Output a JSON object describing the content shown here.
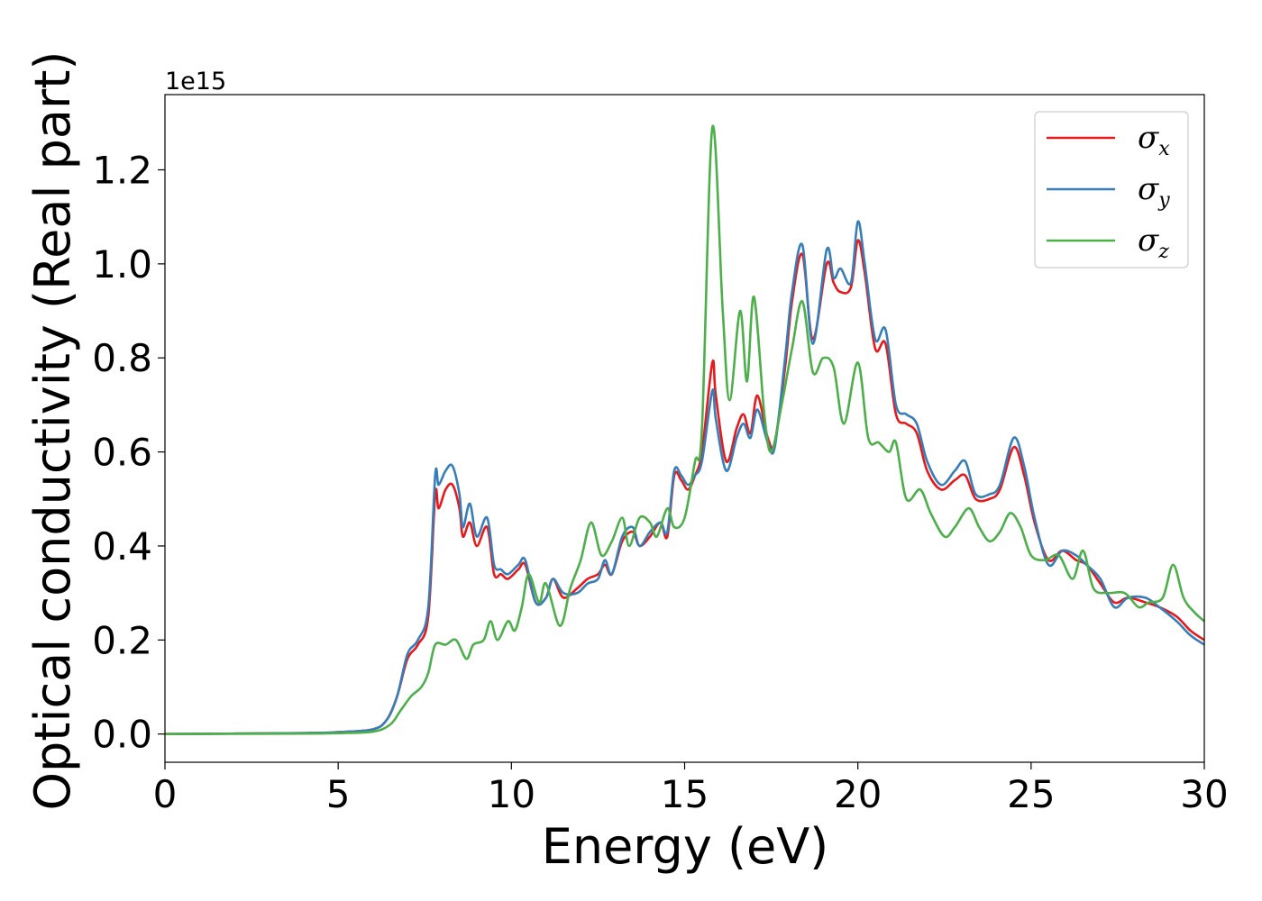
{
  "chart_data": {
    "type": "line",
    "title": "",
    "xlabel": "Energy (eV)",
    "ylabel": "Optical conductivity (Real part)",
    "y_offset_text": "1e15",
    "xlim": [
      0,
      30
    ],
    "ylim": [
      -0.06,
      1.36
    ],
    "x_ticks": [
      0,
      5,
      10,
      15,
      20,
      25,
      30
    ],
    "x_tick_labels": [
      "0",
      "5",
      "10",
      "15",
      "20",
      "25",
      "30"
    ],
    "y_ticks": [
      0.0,
      0.2,
      0.4,
      0.6,
      0.8,
      1.0,
      1.2
    ],
    "y_tick_labels": [
      "0.0",
      "0.2",
      "0.4",
      "0.6",
      "0.8",
      "1.0",
      "1.2"
    ],
    "grid": false,
    "legend_position": "top-right",
    "series": [
      {
        "name": "σx",
        "symbol": "σ",
        "subscript": "x",
        "color": "#e41a1c",
        "points": [
          [
            0,
            0
          ],
          [
            4,
            0.002
          ],
          [
            5,
            0.004
          ],
          [
            6,
            0.01
          ],
          [
            6.4,
            0.03
          ],
          [
            6.7,
            0.08
          ],
          [
            7,
            0.16
          ],
          [
            7.3,
            0.19
          ],
          [
            7.6,
            0.25
          ],
          [
            7.8,
            0.51
          ],
          [
            7.9,
            0.48
          ],
          [
            8.1,
            0.52
          ],
          [
            8.3,
            0.53
          ],
          [
            8.5,
            0.48
          ],
          [
            8.6,
            0.42
          ],
          [
            8.8,
            0.45
          ],
          [
            9,
            0.4
          ],
          [
            9.3,
            0.44
          ],
          [
            9.5,
            0.34
          ],
          [
            9.7,
            0.34
          ],
          [
            9.9,
            0.33
          ],
          [
            10.2,
            0.35
          ],
          [
            10.4,
            0.36
          ],
          [
            10.7,
            0.28
          ],
          [
            11,
            0.29
          ],
          [
            11.2,
            0.33
          ],
          [
            11.5,
            0.29
          ],
          [
            11.9,
            0.31
          ],
          [
            12.2,
            0.33
          ],
          [
            12.5,
            0.34
          ],
          [
            12.7,
            0.36
          ],
          [
            12.9,
            0.34
          ],
          [
            13.2,
            0.41
          ],
          [
            13.5,
            0.43
          ],
          [
            13.7,
            0.4
          ],
          [
            14,
            0.42
          ],
          [
            14.3,
            0.45
          ],
          [
            14.5,
            0.42
          ],
          [
            14.7,
            0.55
          ],
          [
            14.9,
            0.54
          ],
          [
            15.1,
            0.52
          ],
          [
            15.3,
            0.55
          ],
          [
            15.5,
            0.6
          ],
          [
            15.8,
            0.79
          ],
          [
            15.9,
            0.72
          ],
          [
            16.2,
            0.58
          ],
          [
            16.5,
            0.65
          ],
          [
            16.7,
            0.68
          ],
          [
            16.9,
            0.64
          ],
          [
            17.1,
            0.72
          ],
          [
            17.4,
            0.63
          ],
          [
            17.6,
            0.62
          ],
          [
            17.9,
            0.78
          ],
          [
            18.1,
            0.92
          ],
          [
            18.4,
            1.02
          ],
          [
            18.7,
            0.84
          ],
          [
            19.1,
            1.0
          ],
          [
            19.3,
            0.96
          ],
          [
            19.5,
            0.94
          ],
          [
            19.8,
            0.95
          ],
          [
            20,
            1.05
          ],
          [
            20.2,
            0.98
          ],
          [
            20.5,
            0.82
          ],
          [
            20.8,
            0.83
          ],
          [
            21.1,
            0.68
          ],
          [
            21.4,
            0.66
          ],
          [
            21.7,
            0.64
          ],
          [
            22,
            0.56
          ],
          [
            22.4,
            0.52
          ],
          [
            22.8,
            0.54
          ],
          [
            23.1,
            0.55
          ],
          [
            23.4,
            0.5
          ],
          [
            23.8,
            0.5
          ],
          [
            24.1,
            0.52
          ],
          [
            24.5,
            0.61
          ],
          [
            24.8,
            0.55
          ],
          [
            25.1,
            0.45
          ],
          [
            25.5,
            0.37
          ],
          [
            25.9,
            0.39
          ],
          [
            26.3,
            0.37
          ],
          [
            26.6,
            0.36
          ],
          [
            27,
            0.32
          ],
          [
            27.4,
            0.28
          ],
          [
            27.8,
            0.29
          ],
          [
            28.3,
            0.28
          ],
          [
            28.7,
            0.27
          ],
          [
            29.2,
            0.25
          ],
          [
            29.6,
            0.22
          ],
          [
            30,
            0.2
          ]
        ]
      },
      {
        "name": "σy",
        "symbol": "σ",
        "subscript": "y",
        "color": "#377eb8",
        "points": [
          [
            0,
            0
          ],
          [
            4,
            0.002
          ],
          [
            5,
            0.004
          ],
          [
            6,
            0.01
          ],
          [
            6.4,
            0.03
          ],
          [
            6.7,
            0.08
          ],
          [
            7,
            0.17
          ],
          [
            7.3,
            0.2
          ],
          [
            7.6,
            0.27
          ],
          [
            7.8,
            0.55
          ],
          [
            7.9,
            0.53
          ],
          [
            8.1,
            0.56
          ],
          [
            8.3,
            0.57
          ],
          [
            8.5,
            0.51
          ],
          [
            8.6,
            0.44
          ],
          [
            8.8,
            0.49
          ],
          [
            9,
            0.42
          ],
          [
            9.3,
            0.46
          ],
          [
            9.5,
            0.36
          ],
          [
            9.7,
            0.35
          ],
          [
            9.9,
            0.34
          ],
          [
            10.2,
            0.36
          ],
          [
            10.4,
            0.37
          ],
          [
            10.7,
            0.28
          ],
          [
            11,
            0.29
          ],
          [
            11.2,
            0.33
          ],
          [
            11.5,
            0.3
          ],
          [
            11.9,
            0.3
          ],
          [
            12.2,
            0.32
          ],
          [
            12.5,
            0.33
          ],
          [
            12.7,
            0.37
          ],
          [
            12.9,
            0.34
          ],
          [
            13.2,
            0.42
          ],
          [
            13.5,
            0.44
          ],
          [
            13.7,
            0.4
          ],
          [
            14,
            0.43
          ],
          [
            14.3,
            0.45
          ],
          [
            14.5,
            0.43
          ],
          [
            14.7,
            0.56
          ],
          [
            14.9,
            0.55
          ],
          [
            15.1,
            0.53
          ],
          [
            15.3,
            0.55
          ],
          [
            15.5,
            0.58
          ],
          [
            15.8,
            0.73
          ],
          [
            15.9,
            0.67
          ],
          [
            16.2,
            0.56
          ],
          [
            16.5,
            0.63
          ],
          [
            16.7,
            0.66
          ],
          [
            16.9,
            0.63
          ],
          [
            17.1,
            0.69
          ],
          [
            17.4,
            0.62
          ],
          [
            17.6,
            0.61
          ],
          [
            17.9,
            0.8
          ],
          [
            18.1,
            0.94
          ],
          [
            18.4,
            1.04
          ],
          [
            18.7,
            0.83
          ],
          [
            19.1,
            1.03
          ],
          [
            19.3,
            0.97
          ],
          [
            19.5,
            0.99
          ],
          [
            19.8,
            0.96
          ],
          [
            20,
            1.09
          ],
          [
            20.2,
            1.0
          ],
          [
            20.5,
            0.84
          ],
          [
            20.8,
            0.86
          ],
          [
            21.1,
            0.7
          ],
          [
            21.4,
            0.68
          ],
          [
            21.7,
            0.66
          ],
          [
            22,
            0.58
          ],
          [
            22.4,
            0.53
          ],
          [
            22.8,
            0.56
          ],
          [
            23.1,
            0.58
          ],
          [
            23.4,
            0.51
          ],
          [
            23.8,
            0.51
          ],
          [
            24.1,
            0.53
          ],
          [
            24.5,
            0.63
          ],
          [
            24.8,
            0.57
          ],
          [
            25.1,
            0.46
          ],
          [
            25.5,
            0.36
          ],
          [
            25.9,
            0.39
          ],
          [
            26.3,
            0.38
          ],
          [
            26.6,
            0.36
          ],
          [
            27,
            0.33
          ],
          [
            27.4,
            0.27
          ],
          [
            27.8,
            0.29
          ],
          [
            28.3,
            0.29
          ],
          [
            28.7,
            0.27
          ],
          [
            29.2,
            0.24
          ],
          [
            29.6,
            0.21
          ],
          [
            30,
            0.19
          ]
        ]
      },
      {
        "name": "σz",
        "symbol": "σ",
        "subscript": "z",
        "color": "#4daf4a",
        "points": [
          [
            0,
            0
          ],
          [
            4,
            0.001
          ],
          [
            5,
            0.002
          ],
          [
            6,
            0.005
          ],
          [
            6.5,
            0.02
          ],
          [
            6.8,
            0.05
          ],
          [
            7.1,
            0.08
          ],
          [
            7.4,
            0.1
          ],
          [
            7.6,
            0.13
          ],
          [
            7.8,
            0.19
          ],
          [
            8.1,
            0.19
          ],
          [
            8.4,
            0.2
          ],
          [
            8.7,
            0.16
          ],
          [
            8.9,
            0.19
          ],
          [
            9.2,
            0.2
          ],
          [
            9.4,
            0.24
          ],
          [
            9.6,
            0.2
          ],
          [
            9.9,
            0.24
          ],
          [
            10.1,
            0.22
          ],
          [
            10.3,
            0.27
          ],
          [
            10.5,
            0.34
          ],
          [
            10.8,
            0.28
          ],
          [
            11,
            0.32
          ],
          [
            11.4,
            0.23
          ],
          [
            11.7,
            0.31
          ],
          [
            12,
            0.37
          ],
          [
            12.3,
            0.45
          ],
          [
            12.6,
            0.38
          ],
          [
            12.9,
            0.41
          ],
          [
            13.2,
            0.46
          ],
          [
            13.4,
            0.4
          ],
          [
            13.7,
            0.46
          ],
          [
            14,
            0.45
          ],
          [
            14.2,
            0.42
          ],
          [
            14.5,
            0.48
          ],
          [
            14.7,
            0.44
          ],
          [
            15,
            0.46
          ],
          [
            15.3,
            0.58
          ],
          [
            15.5,
            0.65
          ],
          [
            15.8,
            1.29
          ],
          [
            16.1,
            0.9
          ],
          [
            16.3,
            0.71
          ],
          [
            16.6,
            0.9
          ],
          [
            16.8,
            0.75
          ],
          [
            17,
            0.93
          ],
          [
            17.3,
            0.68
          ],
          [
            17.5,
            0.6
          ],
          [
            17.8,
            0.7
          ],
          [
            18.1,
            0.82
          ],
          [
            18.4,
            0.92
          ],
          [
            18.7,
            0.77
          ],
          [
            19,
            0.8
          ],
          [
            19.3,
            0.78
          ],
          [
            19.6,
            0.66
          ],
          [
            20,
            0.79
          ],
          [
            20.3,
            0.63
          ],
          [
            20.6,
            0.62
          ],
          [
            20.9,
            0.6
          ],
          [
            21.1,
            0.62
          ],
          [
            21.4,
            0.5
          ],
          [
            21.8,
            0.52
          ],
          [
            22.1,
            0.47
          ],
          [
            22.5,
            0.42
          ],
          [
            22.8,
            0.44
          ],
          [
            23.2,
            0.48
          ],
          [
            23.5,
            0.44
          ],
          [
            23.8,
            0.41
          ],
          [
            24.1,
            0.43
          ],
          [
            24.4,
            0.47
          ],
          [
            24.7,
            0.44
          ],
          [
            25,
            0.38
          ],
          [
            25.4,
            0.37
          ],
          [
            25.8,
            0.38
          ],
          [
            26.2,
            0.33
          ],
          [
            26.5,
            0.39
          ],
          [
            26.8,
            0.31
          ],
          [
            27.2,
            0.3
          ],
          [
            27.7,
            0.3
          ],
          [
            28.1,
            0.27
          ],
          [
            28.4,
            0.28
          ],
          [
            28.8,
            0.29
          ],
          [
            29.1,
            0.36
          ],
          [
            29.4,
            0.29
          ],
          [
            29.7,
            0.26
          ],
          [
            30,
            0.24
          ]
        ]
      }
    ]
  }
}
